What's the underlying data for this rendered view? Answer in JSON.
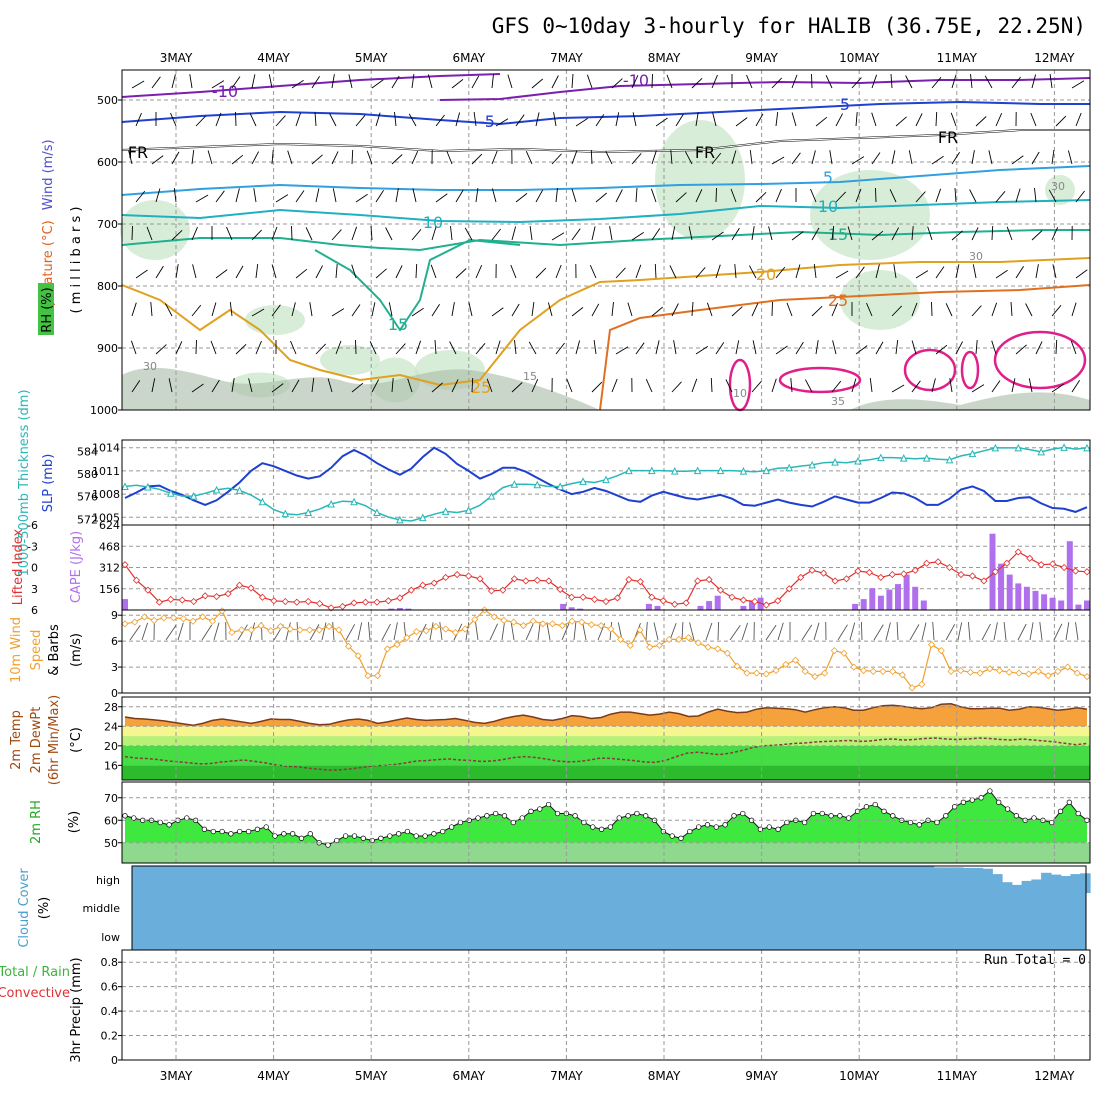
{
  "title": "GFS 0~10day 3-hourly for HALIB (36.75E, 22.25N)",
  "dates": [
    "3MAY",
    "4MAY",
    "5MAY",
    "6MAY",
    "7MAY",
    "8MAY",
    "9MAY",
    "10MAY",
    "11MAY",
    "12MAY"
  ],
  "panels": {
    "upper": {
      "ylabel_wind": "Wind (m/s)",
      "ylabel_temp": "Temperature (°C)",
      "ylabel_rh": "RH (%)",
      "ylabel_axis": "( m i l l i b a r s )",
      "ticks": [
        "500",
        "600",
        "700",
        "800",
        "900",
        "1000"
      ],
      "contour_labels": [
        "-10",
        "-10",
        "-5",
        "5",
        "FR",
        "FR",
        "FR",
        "5",
        "10",
        "10",
        "15",
        "15",
        "20",
        "25",
        "25",
        "30",
        "30",
        "30",
        "35",
        "10",
        "15"
      ]
    },
    "pressure": {
      "ylabel_thick": "1000-500mb Thickness (dm)",
      "ylabel_slp": "SLP (mb)",
      "thick_ticks": [
        "584",
        "580",
        "576",
        "572"
      ],
      "slp_ticks": [
        "1014",
        "1011",
        "1008",
        "1005"
      ]
    },
    "cape": {
      "ylabel_li": "Lifted Index",
      "ylabel_cape": "CAPE (J/kg)",
      "li_ticks": [
        "-6",
        "-3",
        "0",
        "3",
        "6"
      ],
      "cape_ticks": [
        "624",
        "468",
        "312",
        "156"
      ]
    },
    "wind": {
      "ylabel_1": "10m Wind",
      "ylabel_2": "Speed",
      "ylabel_3": "& Barbs",
      "ylabel_unit": "(m/s)",
      "ticks": [
        "9",
        "6",
        "3",
        "0"
      ]
    },
    "temp": {
      "ylabel_1": "2m Temp",
      "ylabel_2": "2m DewPt",
      "ylabel_3": "(6hr Min/Max)",
      "ylabel_unit": "(°C)",
      "ticks": [
        "28",
        "24",
        "20",
        "16"
      ]
    },
    "rh": {
      "ylabel": "2m RH",
      "ylabel_unit": "(%)",
      "ticks": [
        "70",
        "60",
        "50"
      ]
    },
    "cloud": {
      "ylabel": "Cloud Cover",
      "ylabel_unit": "(%)",
      "levels": [
        "high",
        "middle",
        "low"
      ]
    },
    "precip": {
      "ylabel_1": "Total / Rain",
      "ylabel_2": "Convective",
      "ylabel_3": "3hr Precip (mm)",
      "run_total": "Run Total = 0",
      "ticks": [
        "0.8",
        "0.6",
        "0.4",
        "0.2",
        "0"
      ]
    }
  },
  "colors": {
    "slp": "#1f3fcf",
    "thickness": "#2ab7b7",
    "li": "#e03030",
    "cape": "#b070ee",
    "wind": "#f0a030",
    "temp_fill": "#f5a23c",
    "rh_fill": "#3ee83e",
    "cloud": "#6aaedb",
    "humid": "#c8e6c8"
  },
  "chart_data": [
    {
      "type": "line",
      "title": "Sea level pressure (mb)",
      "x_start": "2MAY 12Z",
      "x_step_hours": 3,
      "ylim": [
        1004,
        1015
      ],
      "values": [
        1007.5,
        1008.2,
        1009.0,
        1009.1,
        1008.4,
        1007.9,
        1007.2,
        1006.6,
        1007.2,
        1008.3,
        1009.5,
        1011.0,
        1012.0,
        1011.6,
        1011.0,
        1010.4,
        1010.0,
        1010.3,
        1011.4,
        1012.9,
        1013.7,
        1013.0,
        1012.0,
        1011.2,
        1010.5,
        1011.3,
        1012.8,
        1014.0,
        1013.2,
        1011.9,
        1011.0,
        1010.0,
        1010.6,
        1011.4,
        1011.4,
        1010.9,
        1010.1,
        1009.3,
        1008.6,
        1008.0,
        1008.3,
        1008.8,
        1008.4,
        1007.8,
        1007.2,
        1007.0,
        1007.8,
        1008.3,
        1007.9,
        1007.5,
        1007.3,
        1007.6,
        1007.9,
        1007.4,
        1006.6,
        1006.5,
        1006.9,
        1007.3,
        1006.9,
        1006.6,
        1006.4,
        1007.0,
        1007.7,
        1007.3,
        1006.9,
        1006.9,
        1007.5,
        1008.2,
        1008.1,
        1007.5,
        1006.6,
        1006.6,
        1007.4,
        1008.6,
        1009.0,
        1008.4,
        1007.1,
        1007.1,
        1007.5,
        1007.6,
        1006.8,
        1006.2,
        1006.1,
        1005.7,
        1006.3
      ],
      "series_color_key": "slp"
    },
    {
      "type": "line",
      "title": "1000-500mb Thickness (dm)",
      "x_start": "2MAY 12Z",
      "x_step_hours": 3,
      "ylim": [
        571,
        586
      ],
      "values": [
        577.8,
        578.0,
        577.7,
        577.3,
        576.6,
        576.1,
        576.1,
        576.6,
        577.2,
        577.5,
        577.1,
        576.3,
        575.1,
        573.7,
        573.0,
        572.8,
        573.2,
        573.8,
        574.7,
        575.2,
        575.1,
        574.4,
        573.2,
        572.4,
        571.9,
        571.7,
        572.3,
        572.9,
        573.4,
        573.2,
        573.6,
        574.5,
        576.1,
        577.6,
        578.2,
        578.2,
        578.1,
        577.8,
        577.8,
        578.3,
        578.7,
        578.5,
        579.0,
        579.7,
        580.6,
        580.6,
        580.6,
        580.6,
        580.5,
        580.5,
        580.6,
        580.6,
        580.6,
        580.6,
        580.5,
        580.4,
        580.6,
        581.0,
        581.1,
        581.4,
        581.6,
        582.0,
        582.1,
        582.0,
        582.3,
        582.5,
        582.9,
        582.9,
        582.8,
        582.7,
        582.8,
        582.6,
        582.5,
        583.2,
        583.6,
        584.1,
        584.6,
        584.6,
        584.6,
        584.3,
        583.9,
        584.4,
        584.7,
        584.4,
        584.6
      ],
      "series_color_key": "thickness"
    },
    {
      "type": "line",
      "title": "Lifted Index",
      "x_start": "2MAY 12Z",
      "x_step_hours": 3,
      "ylim": [
        6,
        -6
      ],
      "values": [
        -0.4,
        1.8,
        3.2,
        4.9,
        4.5,
        4.6,
        4.8,
        4.0,
        4.1,
        3.7,
        2.5,
        2.9,
        4.2,
        4.7,
        4.8,
        4.9,
        4.8,
        5.1,
        5.7,
        5.5,
        5.0,
        4.9,
        4.9,
        4.7,
        4.3,
        3.2,
        2.5,
        2.2,
        1.4,
        1.0,
        1.2,
        1.6,
        3.3,
        3.2,
        1.6,
        1.9,
        1.8,
        1.9,
        3.1,
        4.2,
        4.2,
        4.5,
        4.8,
        4.3,
        1.7,
        2.0,
        4.2,
        4.7,
        5.2,
        5.0,
        1.9,
        1.7,
        3.2,
        4.2,
        4.6,
        4.8,
        5.3,
        4.7,
        3.0,
        1.4,
        0.4,
        0.8,
        1.9,
        1.6,
        0.5,
        0.7,
        1.4,
        1.0,
        0.9,
        0.4,
        -0.6,
        -0.8,
        0.0,
        1.0,
        1.2,
        1.9,
        0.6,
        -0.6,
        -2.2,
        -1.3,
        -0.4,
        -0.5,
        0.0,
        0.5,
        0.6
      ],
      "series_color_key": "li"
    },
    {
      "type": "bar",
      "title": "CAPE (J/kg)",
      "x_start": "2MAY 12Z",
      "x_step_hours": 3,
      "ylim": [
        0,
        624
      ],
      "values": [
        80,
        0,
        0,
        0,
        0,
        0,
        0,
        0,
        0,
        0,
        0,
        0,
        0,
        0,
        0,
        0,
        0,
        0,
        0,
        0,
        0,
        0,
        0,
        0,
        0,
        0,
        0,
        0,
        0,
        0,
        0,
        10,
        15,
        10,
        0,
        0,
        0,
        0,
        0,
        0,
        0,
        0,
        0,
        0,
        0,
        0,
        0,
        0,
        0,
        0,
        0,
        45,
        20,
        10,
        0,
        0,
        0,
        0,
        0,
        0,
        0,
        45,
        30,
        0,
        0,
        0,
        0,
        30,
        65,
        105,
        0,
        0,
        30,
        65,
        90,
        0,
        0,
        0,
        0,
        0,
        0,
        0,
        0,
        0,
        0,
        45,
        80,
        160,
        105,
        150,
        190,
        260,
        170,
        70,
        0,
        0,
        0,
        0,
        0,
        0,
        0,
        560,
        340,
        260,
        195,
        170,
        140,
        115,
        90,
        70,
        505,
        40,
        70
      ]
    },
    {
      "type": "line",
      "title": "10m Wind Speed (m/s)",
      "x_start": "2MAY 12Z",
      "x_step_hours": 3,
      "ylim": [
        0,
        9.6
      ],
      "values": [
        8.0,
        8.2,
        8.8,
        8.4,
        8.7,
        8.7,
        8.6,
        8.3,
        8.8,
        8.3,
        9.5,
        7.0,
        7.3,
        7.3,
        7.8,
        7.2,
        7.7,
        7.4,
        7.3,
        7.3,
        7.3,
        7.7,
        7.3,
        5.4,
        4.3,
        2.0,
        2.0,
        5.1,
        5.6,
        6.4,
        7.1,
        7.2,
        7.7,
        7.4,
        7.0,
        7.4,
        8.5,
        9.6,
        8.8,
        8.4,
        8.2,
        7.8,
        8.3,
        8.0,
        8.0,
        7.8,
        8.3,
        8.2,
        7.9,
        7.8,
        7.4,
        6.2,
        5.5,
        7.3,
        5.3,
        5.5,
        6.2,
        6.2,
        6.4,
        5.8,
        5.3,
        5.1,
        4.6,
        3.1,
        2.3,
        2.3,
        2.2,
        2.6,
        3.3,
        3.8,
        2.5,
        1.9,
        2.3,
        4.9,
        4.6,
        3.0,
        2.6,
        2.5,
        2.5,
        2.5,
        2.1,
        0.6,
        1.0,
        5.6,
        4.9,
        2.5,
        2.6,
        2.4,
        2.3,
        2.8,
        2.6,
        2.4,
        2.3,
        2.2,
        2.5,
        2.0,
        2.5,
        3.0,
        2.3,
        1.9
      ],
      "series_color_key": "wind"
    },
    {
      "type": "area",
      "title": "2m Temp (°C)",
      "x_start": "2MAY 12Z",
      "x_step_hours": 3,
      "ylim": [
        13,
        30
      ],
      "values": [
        25.9,
        25.6,
        25.5,
        25.3,
        25.1,
        24.8,
        24.5,
        24.2,
        24.6,
        25.2,
        25.5,
        25.2,
        24.9,
        24.6,
        25.0,
        25.5,
        25.4,
        25.4,
        25.0,
        24.6,
        24.3,
        24.4,
        24.9,
        25.3,
        25.5,
        25.2,
        24.6,
        24.9,
        25.3,
        25.7,
        25.4,
        25.2,
        25.3,
        25.4,
        25.6,
        25.2,
        24.8,
        24.6,
        25.0,
        25.6,
        26.0,
        26.3,
        25.9,
        25.4,
        25.2,
        25.6,
        26.2,
        26.0,
        25.6,
        25.8,
        26.5,
        26.9,
        26.9,
        26.6,
        26.3,
        26.5,
        26.9,
        26.6,
        26.0,
        26.1,
        26.9,
        27.5,
        27.1,
        26.8,
        26.9,
        27.5,
        27.8,
        27.7,
        27.6,
        27.4,
        26.9,
        27.4,
        27.8,
        28.0,
        27.8,
        27.3,
        27.3,
        27.8,
        28.2,
        28.3,
        28.1,
        27.8,
        27.6,
        27.8,
        28.5,
        28.6,
        28.0,
        27.6,
        27.6,
        27.7,
        27.7,
        27.3,
        27.5,
        28.0,
        27.9,
        27.6,
        27.3,
        27.5,
        27.8,
        27.5
      ],
      "series_color_key": "temp_fill"
    },
    {
      "type": "line",
      "title": "2m DewPt (°C)",
      "x_start": "2MAY 12Z",
      "x_step_hours": 3,
      "ylim": [
        13,
        30
      ],
      "values": [
        17.8,
        17.5,
        17.4,
        17.2,
        16.9,
        16.7,
        16.5,
        16.3,
        16.4,
        16.7,
        16.9,
        17.1,
        16.8,
        16.5,
        16.1,
        15.8,
        15.7,
        15.4,
        15.2,
        15.0,
        15.1,
        15.3,
        15.6,
        15.9,
        16.0,
        16.2,
        16.5,
        16.9,
        17.0,
        17.2,
        17.3,
        17.1,
        17.0,
        16.8,
        16.9,
        17.2,
        17.6,
        17.8,
        17.6,
        17.3,
        16.9,
        16.7,
        16.8,
        17.1,
        17.5,
        17.4,
        17.2,
        17.0,
        16.7,
        16.6,
        17.0,
        17.8,
        18.5,
        18.7,
        18.4,
        18.2,
        18.5,
        19.0,
        19.6,
        20.0,
        20.1,
        20.3,
        20.5,
        20.6,
        20.8,
        20.9,
        21.0,
        21.1,
        20.9,
        21.0,
        21.3,
        21.4,
        21.2,
        21.3,
        21.5,
        21.6,
        21.4,
        21.3,
        21.4,
        21.6,
        21.5,
        21.3,
        21.2,
        21.4,
        21.2,
        21.0,
        20.8,
        20.5,
        20.2,
        20.5
      ],
      "series_color_key": "temp_fill"
    },
    {
      "type": "area",
      "title": "2m RH (%)",
      "x_start": "2MAY 12Z",
      "x_step_hours": 3,
      "ylim": [
        41,
        77
      ],
      "values": [
        62,
        61,
        60,
        60,
        59,
        58,
        60,
        61,
        60,
        56,
        55,
        55,
        54,
        55,
        55,
        56,
        57,
        53,
        54,
        54,
        52,
        54,
        50,
        49,
        51,
        53,
        53,
        52,
        51,
        52,
        53,
        54,
        55,
        53,
        53,
        54,
        55,
        57,
        59,
        60,
        61,
        62,
        63,
        62,
        59,
        61,
        64,
        65,
        67,
        63,
        63,
        62,
        59,
        57,
        56,
        57,
        61,
        62,
        63,
        62,
        60,
        55,
        53,
        52,
        55,
        57,
        58,
        57,
        58,
        62,
        63,
        60,
        56,
        57,
        56,
        59,
        60,
        59,
        63,
        63,
        62,
        62,
        61,
        64,
        66,
        67,
        64,
        62,
        60,
        59,
        58,
        60,
        59,
        62,
        66,
        68,
        69,
        70,
        73,
        68,
        65,
        62,
        60,
        61,
        60,
        59,
        64,
        68,
        63,
        60
      ]
    },
    {
      "type": "heatmap",
      "title": "Cloud Cover (%)",
      "levels": [
        "high",
        "middle",
        "low"
      ],
      "x_start": "2MAY 12Z",
      "x_step_hours": 3,
      "low_middle_cover": 100,
      "high_cover": [
        100,
        100,
        100,
        100,
        100,
        100,
        100,
        100,
        100,
        100,
        100,
        100,
        100,
        100,
        100,
        100,
        100,
        100,
        100,
        100,
        100,
        100,
        100,
        100,
        100,
        100,
        100,
        100,
        100,
        100,
        100,
        100,
        100,
        100,
        100,
        100,
        100,
        100,
        100,
        100,
        100,
        100,
        100,
        100,
        100,
        100,
        100,
        100,
        100,
        100,
        100,
        100,
        100,
        100,
        100,
        100,
        100,
        100,
        100,
        100,
        100,
        100,
        100,
        100,
        100,
        100,
        100,
        100,
        100,
        100,
        100,
        100,
        100,
        100,
        100,
        100,
        100,
        100,
        100,
        100,
        100,
        100,
        95,
        95,
        95,
        93,
        93,
        90,
        70,
        40,
        30,
        45,
        50,
        75,
        68,
        63,
        70,
        73
      ]
    },
    {
      "type": "bar",
      "title": "3hr Precip (mm)",
      "ylim": [
        0,
        0.9
      ],
      "values": [
        0
      ],
      "annotation": "Run Total = 0"
    }
  ]
}
